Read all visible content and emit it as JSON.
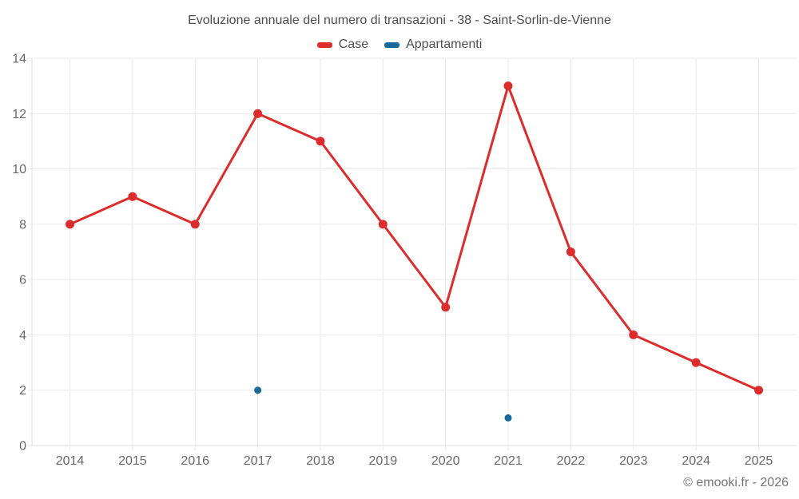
{
  "footer_credit": "© emooki.fr - 2026",
  "colors": {
    "grid": "#e9e9e9",
    "axis": "#dedede",
    "tick_label": "#686868",
    "title_text": "#4d4d4d",
    "legend_text": "#4f4f4f",
    "footer_text": "#757575",
    "case_red": "#dd2c2c",
    "appartamenti_blue": "#186a9e"
  },
  "chart_data": {
    "type": "line",
    "title": "Evoluzione annuale del numero di transazioni - 38 - Saint-Sorlin-de-Vienne",
    "categories": [
      "2014",
      "2015",
      "2016",
      "2017",
      "2018",
      "2019",
      "2020",
      "2021",
      "2022",
      "2023",
      "2024",
      "2025"
    ],
    "series": [
      {
        "name": "Case",
        "color": "#dd2c2c",
        "marker_radius": 5.5,
        "line_width": 3,
        "values": [
          8,
          9,
          8,
          12,
          11,
          8,
          5,
          13,
          7,
          4,
          3,
          2
        ]
      },
      {
        "name": "Appartamenti",
        "color": "#186a9e",
        "marker_radius": 4.5,
        "line_width": 3,
        "values": [
          null,
          null,
          null,
          2,
          null,
          null,
          null,
          1,
          null,
          null,
          null,
          null
        ]
      }
    ],
    "xlabel": "",
    "ylabel": "",
    "ylim": [
      0,
      14
    ],
    "yticks": [
      0,
      2,
      4,
      6,
      8,
      10,
      12,
      14
    ],
    "grid": true,
    "legend_position": "top"
  }
}
